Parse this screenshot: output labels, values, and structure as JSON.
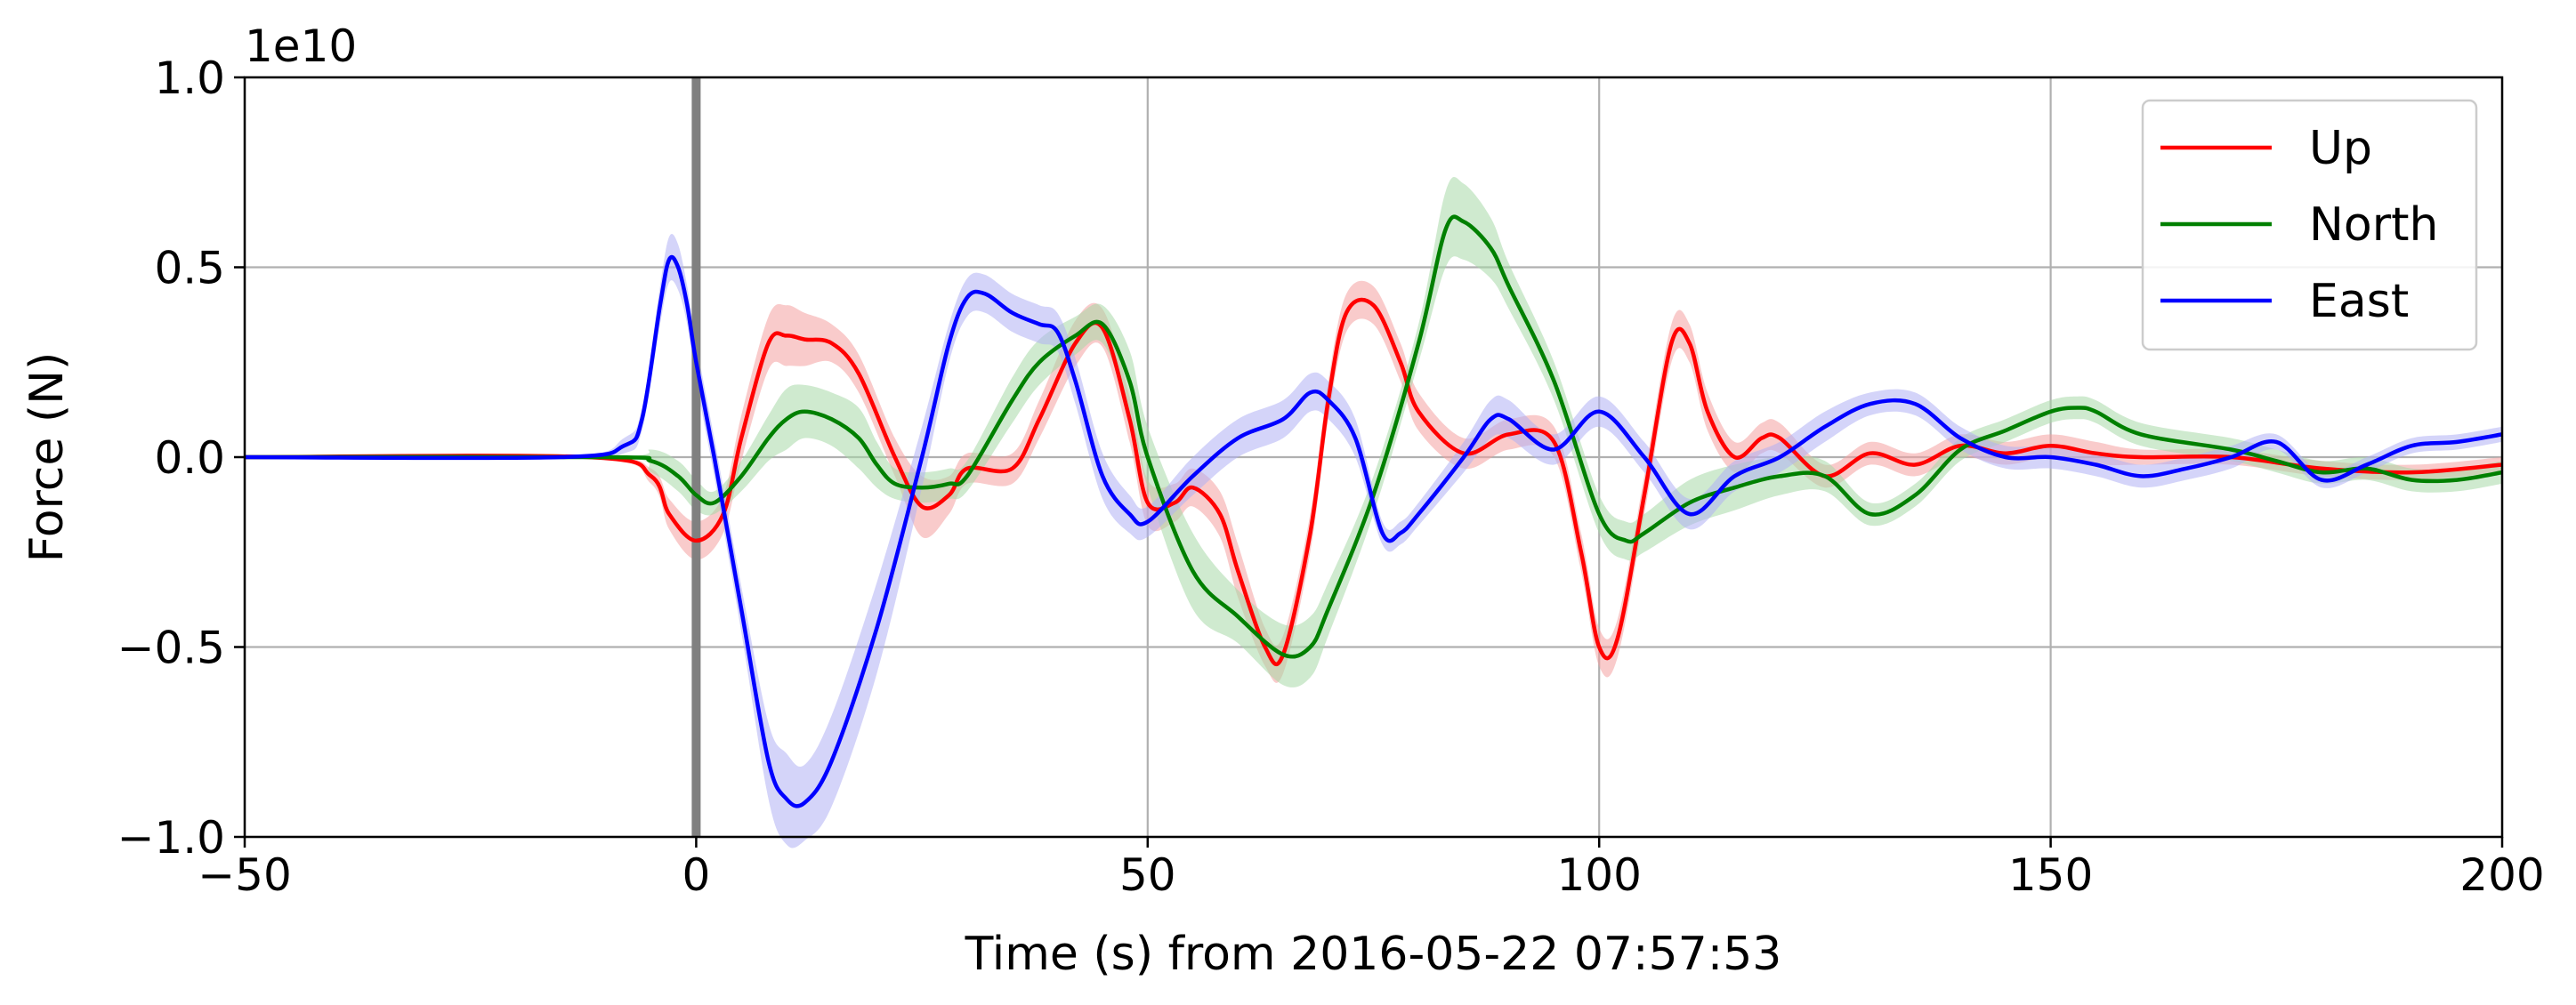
{
  "chart_data": {
    "type": "line",
    "title": "",
    "xlabel": "Time (s) from 2016-05-22 07:57:53",
    "ylabel": "Force (N)",
    "y_offset_label": "1e10",
    "y_scale": 10000000000,
    "xlim": [
      -50,
      200
    ],
    "ylim": [
      -1.0,
      1.0
    ],
    "xticks": [
      -50,
      0,
      50,
      100,
      150,
      200
    ],
    "xtick_labels": [
      "−50",
      "0",
      "50",
      "100",
      "150",
      "200"
    ],
    "yticks": [
      -1.0,
      -0.5,
      0.0,
      0.5,
      1.0
    ],
    "ytick_labels": [
      "−1.0",
      "−0.5",
      "0.0",
      "0.5",
      "1.0"
    ],
    "grid": true,
    "legend_position": "top-right",
    "origin_marker": {
      "x": 0,
      "color": "#808080"
    },
    "series": [
      {
        "name": "Up",
        "color": "#ff0000",
        "band_color": "#f4a0a0",
        "x": [
          -50,
          -12,
          -5,
          -3,
          0,
          3,
          5,
          8,
          10,
          12,
          15,
          18,
          22,
          25,
          28,
          30,
          35,
          38,
          42,
          45,
          48,
          50,
          53,
          55,
          58,
          60,
          63,
          65,
          68,
          70,
          72,
          75,
          78,
          80,
          85,
          90,
          95,
          98,
          100,
          102,
          105,
          108,
          110,
          112,
          115,
          118,
          120,
          125,
          130,
          135,
          140,
          145,
          150,
          155,
          160,
          170,
          180,
          190,
          200
        ],
        "values": [
          0,
          0,
          -0.05,
          -0.15,
          -0.22,
          -0.15,
          0.05,
          0.3,
          0.32,
          0.31,
          0.3,
          0.22,
          0.0,
          -0.13,
          -0.1,
          -0.03,
          -0.03,
          0.1,
          0.3,
          0.34,
          0.1,
          -0.12,
          -0.12,
          -0.08,
          -0.15,
          -0.3,
          -0.5,
          -0.52,
          -0.2,
          0.15,
          0.38,
          0.4,
          0.25,
          0.12,
          0.01,
          0.06,
          0.04,
          -0.25,
          -0.5,
          -0.48,
          -0.1,
          0.3,
          0.3,
          0.12,
          0.0,
          0.05,
          0.05,
          -0.05,
          0.01,
          -0.02,
          0.03,
          0.01,
          0.03,
          0.01,
          0.0,
          0.0,
          -0.03,
          -0.04,
          -0.02
        ],
        "band": [
          0,
          0,
          0.02,
          0.04,
          0.05,
          0.05,
          0.06,
          0.07,
          0.08,
          0.07,
          0.05,
          0.05,
          0.05,
          0.08,
          0.05,
          0.04,
          0.04,
          0.05,
          0.06,
          0.05,
          0.06,
          0.06,
          0.05,
          0.05,
          0.06,
          0.07,
          0.05,
          0.05,
          0.05,
          0.05,
          0.05,
          0.05,
          0.05,
          0.05,
          0.04,
          0.04,
          0.04,
          0.05,
          0.05,
          0.05,
          0.05,
          0.05,
          0.05,
          0.05,
          0.04,
          0.04,
          0.04,
          0.03,
          0.03,
          0.03,
          0.03,
          0.03,
          0.03,
          0.03,
          0.02,
          0.02,
          0.02,
          0.02,
          0.02
        ]
      },
      {
        "name": "North",
        "color": "#008000",
        "band_color": "#a8d8a8",
        "x": [
          -50,
          -10,
          -5,
          -2,
          0,
          2,
          5,
          8,
          10,
          12,
          15,
          18,
          20,
          22,
          25,
          28,
          30,
          35,
          38,
          42,
          45,
          48,
          50,
          55,
          60,
          65,
          68,
          70,
          75,
          80,
          83,
          85,
          88,
          90,
          95,
          100,
          103,
          105,
          110,
          115,
          120,
          125,
          130,
          135,
          140,
          145,
          150,
          153,
          155,
          160,
          170,
          175,
          180,
          185,
          190,
          195,
          200
        ],
        "values": [
          0,
          0,
          -0.01,
          -0.05,
          -0.1,
          -0.12,
          -0.05,
          0.05,
          0.1,
          0.12,
          0.1,
          0.05,
          -0.02,
          -0.07,
          -0.08,
          -0.07,
          -0.05,
          0.15,
          0.25,
          0.32,
          0.35,
          0.2,
          0.0,
          -0.3,
          -0.42,
          -0.52,
          -0.5,
          -0.4,
          -0.1,
          0.3,
          0.6,
          0.62,
          0.55,
          0.45,
          0.2,
          -0.15,
          -0.22,
          -0.2,
          -0.12,
          -0.08,
          -0.05,
          -0.05,
          -0.15,
          -0.1,
          0.02,
          0.07,
          0.12,
          0.13,
          0.12,
          0.06,
          0.02,
          -0.01,
          -0.04,
          -0.03,
          -0.06,
          -0.06,
          -0.04
        ],
        "band": [
          0,
          0,
          0.03,
          0.04,
          0.04,
          0.03,
          0.04,
          0.06,
          0.08,
          0.07,
          0.07,
          0.08,
          0.06,
          0.04,
          0.04,
          0.04,
          0.04,
          0.06,
          0.06,
          0.05,
          0.05,
          0.08,
          0.08,
          0.1,
          0.07,
          0.08,
          0.08,
          0.07,
          0.05,
          0.05,
          0.1,
          0.1,
          0.08,
          0.06,
          0.05,
          0.05,
          0.05,
          0.05,
          0.06,
          0.06,
          0.05,
          0.04,
          0.03,
          0.03,
          0.03,
          0.03,
          0.03,
          0.03,
          0.03,
          0.03,
          0.03,
          0.03,
          0.03,
          0.03,
          0.03,
          0.03,
          0.03
        ]
      },
      {
        "name": "East",
        "color": "#0000ff",
        "band_color": "#b0b0f4",
        "x": [
          -50,
          -15,
          -8,
          -6,
          -4,
          -3,
          -2,
          -1,
          0,
          2,
          5,
          8,
          10,
          12,
          15,
          20,
          25,
          28,
          30,
          32,
          35,
          38,
          40,
          42,
          45,
          48,
          50,
          55,
          60,
          65,
          68,
          70,
          73,
          76,
          78,
          80,
          85,
          88,
          90,
          95,
          100,
          105,
          110,
          115,
          120,
          125,
          130,
          135,
          140,
          145,
          150,
          155,
          160,
          165,
          170,
          175,
          180,
          185,
          190,
          195,
          200
        ],
        "values": [
          0,
          0,
          0.03,
          0.1,
          0.4,
          0.52,
          0.5,
          0.4,
          0.25,
          0.0,
          -0.4,
          -0.8,
          -0.9,
          -0.91,
          -0.8,
          -0.45,
          0.0,
          0.3,
          0.42,
          0.43,
          0.38,
          0.35,
          0.33,
          0.2,
          -0.05,
          -0.15,
          -0.17,
          -0.05,
          0.05,
          0.1,
          0.17,
          0.15,
          0.05,
          -0.2,
          -0.2,
          -0.15,
          0.0,
          0.1,
          0.1,
          0.02,
          0.12,
          0.0,
          -0.15,
          -0.05,
          0.0,
          0.08,
          0.14,
          0.14,
          0.05,
          0.0,
          0.0,
          -0.02,
          -0.05,
          -0.03,
          0.0,
          0.04,
          -0.06,
          -0.02,
          0.03,
          0.04,
          0.06
        ],
        "band": [
          0,
          0,
          0.02,
          0.03,
          0.05,
          0.06,
          0.06,
          0.05,
          0.05,
          0.05,
          0.06,
          0.1,
          0.12,
          0.1,
          0.12,
          0.12,
          0.08,
          0.05,
          0.05,
          0.05,
          0.05,
          0.05,
          0.05,
          0.06,
          0.06,
          0.05,
          0.04,
          0.05,
          0.05,
          0.05,
          0.05,
          0.05,
          0.05,
          0.03,
          0.03,
          0.03,
          0.04,
          0.05,
          0.05,
          0.04,
          0.04,
          0.04,
          0.04,
          0.04,
          0.04,
          0.04,
          0.03,
          0.03,
          0.03,
          0.03,
          0.03,
          0.03,
          0.03,
          0.03,
          0.03,
          0.02,
          0.02,
          0.02,
          0.02,
          0.02,
          0.02
        ]
      }
    ]
  }
}
